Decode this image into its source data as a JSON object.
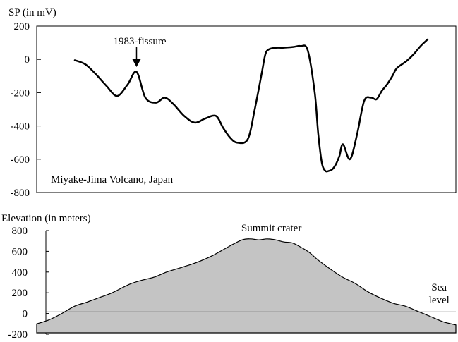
{
  "chart_data": [
    {
      "type": "line",
      "title": "",
      "ylabel": "SP (in mV)",
      "ylim": [
        -800,
        200
      ],
      "yticks": [
        200,
        0,
        -200,
        -400,
        -600,
        -800
      ],
      "xlim": [
        0,
        100
      ],
      "grid": false,
      "inset_label": "Miyake-Jima Volcano, Japan",
      "annotations": [
        {
          "text": "1983-fissure",
          "x": 17.5,
          "y": -80
        }
      ],
      "line_color": "#000000",
      "series": [
        {
          "x": [
            0,
            3,
            6,
            9,
            12,
            15,
            17.5,
            20,
            23,
            25.5,
            28,
            31,
            34,
            37,
            40,
            42,
            44,
            46,
            49,
            51,
            53,
            54,
            55,
            57,
            59,
            62,
            64,
            66,
            68,
            69,
            70,
            71,
            72,
            73,
            74,
            75,
            76,
            78,
            80,
            82,
            84,
            85.5,
            87,
            88.5,
            90,
            91,
            92,
            94,
            96,
            98,
            100
          ],
          "y": [
            -5,
            -30,
            -90,
            -160,
            -220,
            -150,
            -75,
            -230,
            -260,
            -230,
            -270,
            -340,
            -380,
            -355,
            -340,
            -410,
            -470,
            -500,
            -480,
            -300,
            -80,
            30,
            60,
            70,
            70,
            75,
            80,
            55,
            -200,
            -450,
            -620,
            -670,
            -670,
            -660,
            -630,
            -580,
            -510,
            -600,
            -450,
            -250,
            -230,
            -240,
            -190,
            -150,
            -100,
            -60,
            -40,
            -10,
            30,
            80,
            120
          ]
        }
      ]
    },
    {
      "type": "area",
      "title": "",
      "ylabel": "Elevation (in meters)",
      "ylim": [
        -200,
        800
      ],
      "yticks": [
        800,
        600,
        400,
        200,
        0,
        -200
      ],
      "xlim": [
        0,
        100
      ],
      "grid": false,
      "fill_color": "#c4c4c4",
      "line_color": "#000000",
      "baseline_y": 15,
      "annotations": [
        {
          "text": "Summit crater",
          "x": 56,
          "y": 740
        },
        {
          "text": "Sea level",
          "x": 96,
          "y": 170
        }
      ],
      "series": [
        {
          "x": [
            0,
            3,
            6,
            9,
            12,
            15,
            18,
            22,
            25,
            28,
            31,
            35,
            38,
            42,
            46,
            49,
            51,
            53,
            55,
            57,
            59,
            61,
            63,
            65,
            67,
            70,
            73,
            76,
            79,
            82,
            85,
            88,
            91,
            94,
            97,
            100
          ],
          "y": [
            -100,
            -60,
            0,
            70,
            110,
            155,
            200,
            280,
            320,
            350,
            400,
            450,
            490,
            560,
            650,
            710,
            720,
            710,
            720,
            710,
            690,
            680,
            640,
            590,
            520,
            430,
            350,
            290,
            210,
            150,
            100,
            70,
            20,
            -30,
            -80,
            -110
          ]
        }
      ]
    }
  ]
}
